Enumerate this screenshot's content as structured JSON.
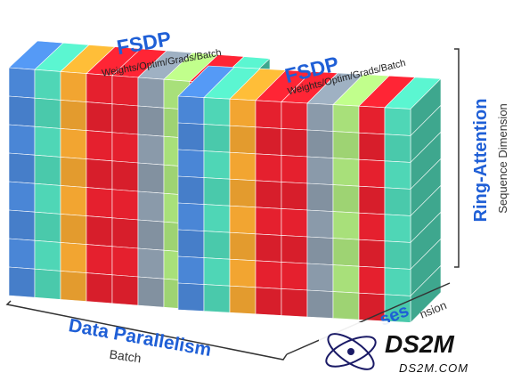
{
  "diagram": {
    "back_block": {
      "title": "FSDP",
      "subtitle": "Weights/Optim/Grads/Batch"
    },
    "front_block": {
      "title": "FSDP",
      "subtitle": "Weights/Optim/Grads/Batch"
    },
    "right_axis": {
      "title": "Ring-Attention",
      "subtitle": "Sequence Dimension"
    },
    "bottom_axis": {
      "title": "Data Parallelism",
      "subtitle": "Batch"
    },
    "depth_axis": {
      "title_fragment": "ses",
      "subtitle_fragment": "nsion"
    },
    "watermark": {
      "logo_text": "DS2M",
      "url_text": "DS2M.COM"
    },
    "column_colors": [
      "#4a86d6",
      "#4fd6b6",
      "#f2a531",
      "#e5202e",
      "#e5202e",
      "#8a9aaa",
      "#a8e07a",
      "#e5202e",
      "#4fd6b6",
      "#f2a531"
    ],
    "accent_colors": {
      "fsdp_title": "#1f5fd6",
      "axis_title": "#1f5fd6",
      "axis_subtitle": "#333333"
    }
  }
}
